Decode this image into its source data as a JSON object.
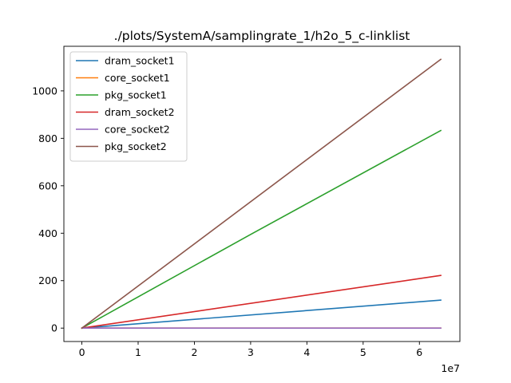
{
  "chart_data": {
    "type": "line",
    "title": "./plots/SystemA/samplingrate_1/h2o_5_c-linklist",
    "xlabel": "",
    "ylabel": "",
    "x_offset_label": "1e7",
    "x_tick_labels": [
      "0",
      "1",
      "2",
      "3",
      "4",
      "5",
      "6"
    ],
    "y_tick_labels": [
      "0",
      "200",
      "400",
      "600",
      "800",
      "1000"
    ],
    "x_ticks": [
      0,
      1,
      2,
      3,
      4,
      5,
      6
    ],
    "y_ticks": [
      0,
      200,
      400,
      600,
      800,
      1000
    ],
    "xlim": [
      -0.32,
      6.72
    ],
    "ylim": [
      -56.5,
      1188
    ],
    "grid": false,
    "legend_position": "top-left",
    "series": [
      {
        "name": "dram_socket1",
        "color": "#1f77b4",
        "x": [
          0,
          6.38
        ],
        "y": [
          0,
          118
        ]
      },
      {
        "name": "core_socket1",
        "color": "#ff7f0e",
        "x": [
          0,
          6.38
        ],
        "y": [
          0,
          0
        ]
      },
      {
        "name": "pkg_socket1",
        "color": "#2ca02c",
        "x": [
          0,
          3,
          6.38
        ],
        "y": [
          0,
          395,
          833
        ]
      },
      {
        "name": "dram_socket2",
        "color": "#d62728",
        "x": [
          0,
          6.38
        ],
        "y": [
          0,
          222
        ]
      },
      {
        "name": "core_socket2",
        "color": "#9467bd",
        "x": [
          0,
          6.38
        ],
        "y": [
          0,
          0
        ]
      },
      {
        "name": "pkg_socket2",
        "color": "#8c564b",
        "x": [
          0,
          6.38
        ],
        "y": [
          0,
          1133
        ]
      }
    ]
  }
}
